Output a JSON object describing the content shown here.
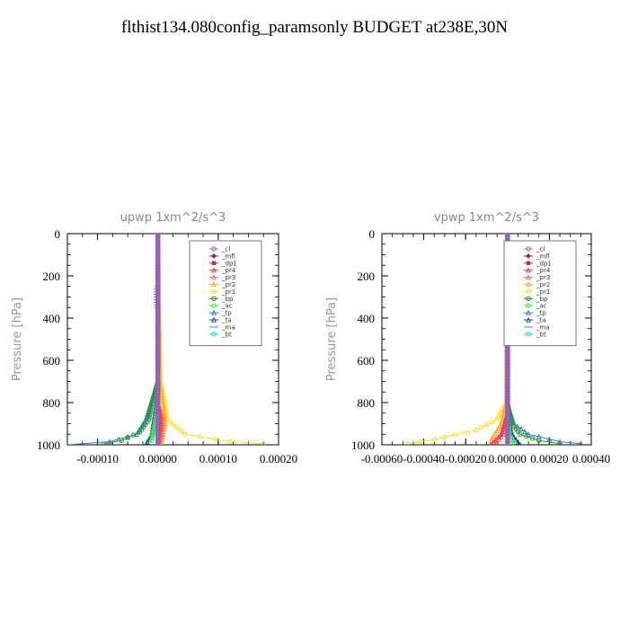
{
  "title": "flthist134.080config_paramsonly  BUDGET at238E,30N",
  "chart_data": [
    {
      "type": "line",
      "title": "upwp   1xm^2/s^3",
      "ylabel": "Pressure [hPa]",
      "xlim": [
        -0.00015,
        0.0002
      ],
      "ylim": [
        1000,
        0
      ],
      "xticks": [
        "-0.00010",
        "0.00000",
        "0.00010",
        "0.00020"
      ],
      "xtick_values": [
        -0.0001,
        0.0,
        0.0001,
        0.0002
      ],
      "yticks": [
        "0",
        "200",
        "400",
        "600",
        "800",
        "1000"
      ],
      "ytick_values": [
        0,
        200,
        400,
        600,
        800,
        1000
      ],
      "legend": "top-right",
      "series": [
        {
          "name": "_cl",
          "color": "#9966cc",
          "points": [
            [
              0,
              0
            ],
            [
              0,
              1000
            ]
          ]
        },
        {
          "name": "_mfl",
          "color": "#8b1a6b",
          "points": [
            [
              0,
              0
            ],
            [
              0,
              1000
            ]
          ]
        },
        {
          "name": "_dp1",
          "color": "#b0306a",
          "points": [
            [
              0,
              0
            ],
            [
              0,
              1000
            ]
          ]
        },
        {
          "name": "_pr4",
          "color": "#ff3333",
          "points": [
            [
              0,
              0
            ],
            [
              0,
              800
            ],
            [
              3e-06,
              850
            ],
            [
              4e-06,
              900
            ],
            [
              2e-06,
              950
            ],
            [
              0,
              1000
            ]
          ]
        },
        {
          "name": "_pr3",
          "color": "#ff6666",
          "points": [
            [
              0,
              0
            ],
            [
              0,
              800
            ],
            [
              8e-06,
              880
            ],
            [
              6e-06,
              950
            ],
            [
              2e-06,
              1000
            ]
          ]
        },
        {
          "name": "_pr2",
          "color": "#ffaa22",
          "points": [
            [
              0,
              0
            ],
            [
              1e-06,
              300
            ],
            [
              3e-06,
              700
            ],
            [
              8e-06,
              800
            ],
            [
              1.2e-05,
              900
            ],
            [
              6e-06,
              1000
            ]
          ]
        },
        {
          "name": "_pr1",
          "color": "#ffdd33",
          "points": [
            [
              0,
              0
            ],
            [
              1e-06,
              300
            ],
            [
              4e-06,
              700
            ],
            [
              1.2e-05,
              800
            ],
            [
              1.5e-05,
              880
            ],
            [
              4.5e-05,
              950
            ],
            [
              0.00012,
              985
            ],
            [
              0.000175,
              995
            ]
          ]
        },
        {
          "name": "_bp",
          "color": "#229922",
          "points": [
            [
              0,
              0
            ],
            [
              0,
              700
            ],
            [
              -1e-05,
              800
            ],
            [
              -1.5e-05,
              880
            ],
            [
              -3e-05,
              940
            ],
            [
              -6e-05,
              980
            ],
            [
              -9e-05,
              995
            ]
          ]
        },
        {
          "name": "_ac",
          "color": "#44ee44",
          "points": [
            [
              0,
              0
            ],
            [
              0,
              800
            ],
            [
              -5e-06,
              900
            ],
            [
              -1e-05,
              980
            ]
          ]
        },
        {
          "name": "_tp",
          "color": "#3377dd",
          "points": [
            [
              0,
              0
            ],
            [
              0,
              700
            ],
            [
              -8e-06,
              770
            ],
            [
              -2e-05,
              880
            ],
            [
              -3.5e-05,
              950
            ],
            [
              -8e-05,
              985
            ],
            [
              -0.00015,
              1000
            ]
          ]
        },
        {
          "name": "_ta",
          "color": "#1144aa",
          "points": [
            [
              0,
              0
            ],
            [
              0,
              760
            ],
            [
              -5e-06,
              850
            ],
            [
              -1e-05,
              950
            ],
            [
              -2e-05,
              1000
            ]
          ]
        },
        {
          "name": "_ma",
          "color": "#3399ff",
          "points": [
            [
              -2e-06,
              250
            ],
            [
              -3e-06,
              300
            ],
            [
              -2e-06,
              350
            ]
          ]
        },
        {
          "name": "_bt",
          "color": "#22dddd",
          "points": [
            [
              0,
              0
            ],
            [
              0,
              1000
            ]
          ]
        }
      ]
    },
    {
      "type": "line",
      "title": "vpwp   1xm^2/s^3",
      "ylabel": "Pressure [hPa]",
      "xlim": [
        -0.0006,
        0.0004
      ],
      "ylim": [
        1000,
        0
      ],
      "xticks": [
        "-0.00060",
        "-0.00040",
        "-0.00020",
        "0.00000",
        "0.00020",
        "0.00040"
      ],
      "xtick_values": [
        -0.0006,
        -0.0004,
        -0.0002,
        0.0,
        0.0002,
        0.0004
      ],
      "yticks": [
        "0",
        "200",
        "400",
        "600",
        "800",
        "1000"
      ],
      "ytick_values": [
        0,
        200,
        400,
        600,
        800,
        1000
      ],
      "legend": "top-right",
      "series": [
        {
          "name": "_cl",
          "color": "#9966cc",
          "points": [
            [
              0,
              0
            ],
            [
              0,
              1000
            ]
          ]
        },
        {
          "name": "_mfl",
          "color": "#8b1a6b",
          "points": [
            [
              0,
              0
            ],
            [
              0,
              1000
            ]
          ]
        },
        {
          "name": "_dp1",
          "color": "#b0306a",
          "points": [
            [
              0,
              0
            ],
            [
              0,
              1000
            ]
          ]
        },
        {
          "name": "_pr4",
          "color": "#ff3333",
          "points": [
            [
              0,
              0
            ],
            [
              0,
              850
            ],
            [
              -3e-05,
              950
            ],
            [
              -8e-05,
              1000
            ]
          ]
        },
        {
          "name": "_pr3",
          "color": "#ff6666",
          "points": [
            [
              0,
              0
            ],
            [
              0,
              850
            ],
            [
              -2e-05,
              950
            ],
            [
              -6e-05,
              1000
            ]
          ]
        },
        {
          "name": "_pr2",
          "color": "#ffaa22",
          "points": [
            [
              0,
              0
            ],
            [
              -5e-06,
              800
            ],
            [
              -3e-05,
              900
            ],
            [
              -8e-05,
              980
            ]
          ]
        },
        {
          "name": "_pr1",
          "color": "#ffdd33",
          "points": [
            [
              0,
              0
            ],
            [
              -5e-06,
              800
            ],
            [
              -5e-05,
              880
            ],
            [
              -0.00015,
              930
            ],
            [
              -0.00035,
              975
            ],
            [
              -0.00048,
              995
            ]
          ]
        },
        {
          "name": "_bp",
          "color": "#229922",
          "points": [
            [
              0,
              0
            ],
            [
              0,
              800
            ],
            [
              2e-05,
              900
            ],
            [
              6e-05,
              950
            ],
            [
              0.00015,
              980
            ],
            [
              0.00025,
              995
            ]
          ]
        },
        {
          "name": "_ac",
          "color": "#44ee44",
          "points": [
            [
              0,
              0
            ],
            [
              0,
              850
            ],
            [
              1e-05,
              950
            ],
            [
              3e-05,
              1000
            ]
          ]
        },
        {
          "name": "_tp",
          "color": "#3377dd",
          "points": [
            [
              0,
              0
            ],
            [
              0,
              800
            ],
            [
              3e-05,
              900
            ],
            [
              0.0001,
              950
            ],
            [
              0.00025,
              985
            ],
            [
              0.00035,
              995
            ]
          ]
        },
        {
          "name": "_ta",
          "color": "#1144aa",
          "points": [
            [
              0,
              0
            ],
            [
              0,
              850
            ],
            [
              2e-05,
              950
            ],
            [
              6e-05,
              1000
            ]
          ]
        },
        {
          "name": "_ma",
          "color": "#3399ff",
          "points": [
            [
              0,
              0
            ],
            [
              0,
              1000
            ]
          ]
        },
        {
          "name": "_bt",
          "color": "#22dddd",
          "points": [
            [
              0,
              0
            ],
            [
              0,
              1000
            ]
          ]
        }
      ]
    }
  ]
}
